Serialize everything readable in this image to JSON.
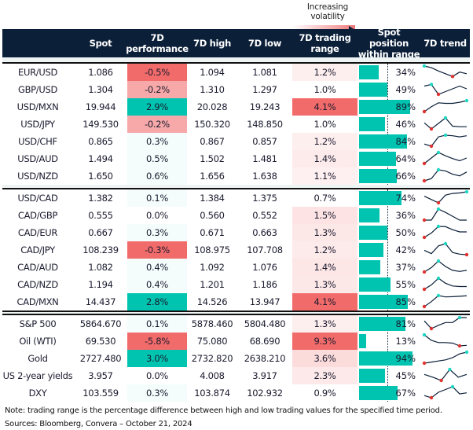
{
  "legend": {
    "label": "Increasing volatility"
  },
  "colors": {
    "header": "#0b1f38",
    "teal": "#00c4b0",
    "red": "#f26b6b",
    "trend_line": "#0b1f38",
    "max_marker": "#1fd6c2",
    "min_marker": "#e0322f"
  },
  "header": {
    "spot": "Spot",
    "perf": "7D\nperformance",
    "high": "7D high",
    "low": "7D low",
    "range": "7D trading\nrange",
    "position": "Spot position\nwithin range",
    "trend": "7D trend"
  },
  "chart_data": {
    "type": "table",
    "columns": [
      "",
      "Spot",
      "7D performance",
      "7D high",
      "7D low",
      "7D trading range",
      "Spot position within range",
      "7D trend"
    ],
    "groups": [
      {
        "rows": [
          {
            "name": "EUR/USD",
            "spot": "1.086",
            "perf": "-0.5%",
            "perf_v": -0.5,
            "high": "1.094",
            "low": "1.081",
            "range": "1.2%",
            "range_v": 1.2,
            "pos": "34%",
            "pos_v": 34,
            "trend": [
              1.0,
              0.85,
              0.55,
              0.3,
              0.05,
              0.45,
              0.3
            ]
          },
          {
            "name": "GBP/USD",
            "spot": "1.304",
            "perf": "-0.2%",
            "perf_v": -0.2,
            "high": "1.310",
            "low": "1.297",
            "range": "1.0%",
            "range_v": 1.0,
            "pos": "49%",
            "pos_v": 49,
            "trend": [
              0.75,
              0.9,
              0.0,
              0.25,
              0.5,
              0.75,
              0.5
            ]
          },
          {
            "name": "USD/MXN",
            "spot": "19.944",
            "perf": "2.9%",
            "perf_v": 2.9,
            "high": "20.028",
            "low": "19.243",
            "range": "4.1%",
            "range_v": 4.1,
            "pos": "89%",
            "pos_v": 89,
            "trend": [
              0.0,
              0.45,
              0.8,
              0.75,
              0.75,
              0.85,
              1.0
            ]
          },
          {
            "name": "USD/JPY",
            "spot": "149.530",
            "perf": "-0.2%",
            "perf_v": -0.2,
            "high": "150.320",
            "low": "148.850",
            "range": "1.0%",
            "range_v": 1.0,
            "pos": "46%",
            "pos_v": 46,
            "trend": [
              0.55,
              0.0,
              0.5,
              1.0,
              0.25,
              0.2,
              0.2
            ]
          },
          {
            "name": "USD/CHF",
            "spot": "0.865",
            "perf": "0.3%",
            "perf_v": 0.3,
            "high": "0.867",
            "low": "0.857",
            "range": "1.2%",
            "range_v": 1.2,
            "pos": "84%",
            "pos_v": 84,
            "trend": [
              0.2,
              0.0,
              0.85,
              1.0,
              0.95,
              0.85,
              0.95
            ]
          },
          {
            "name": "USD/AUD",
            "spot": "1.494",
            "perf": "0.5%",
            "perf_v": 0.5,
            "high": "1.502",
            "low": "1.481",
            "range": "1.4%",
            "range_v": 1.4,
            "pos": "64%",
            "pos_v": 64,
            "trend": [
              0.0,
              0.5,
              1.0,
              0.7,
              0.45,
              0.25,
              0.5
            ]
          },
          {
            "name": "USD/NZD",
            "spot": "1.650",
            "perf": "0.6%",
            "perf_v": 0.6,
            "high": "1.656",
            "low": "1.638",
            "range": "1.1%",
            "range_v": 1.1,
            "pos": "66%",
            "pos_v": 66,
            "trend": [
              0.0,
              0.2,
              1.0,
              0.9,
              0.6,
              0.45,
              0.8
            ]
          }
        ]
      },
      {
        "rows": [
          {
            "name": "USD/CAD",
            "spot": "1.382",
            "perf": "0.1%",
            "perf_v": 0.1,
            "high": "1.384",
            "low": "1.375",
            "range": "0.7%",
            "range_v": 0.7,
            "pos": "74%",
            "pos_v": 74,
            "trend": [
              0.6,
              0.3,
              0.0,
              0.7,
              0.85,
              0.9,
              1.0
            ]
          },
          {
            "name": "CAD/GBP",
            "spot": "0.555",
            "perf": "0.0%",
            "perf_v": 0.0,
            "high": "0.560",
            "low": "0.552",
            "range": "1.5%",
            "range_v": 1.5,
            "pos": "36%",
            "pos_v": 36,
            "trend": [
              0.0,
              0.0,
              1.0,
              0.7,
              0.35,
              0.0,
              0.0
            ]
          },
          {
            "name": "CAD/EUR",
            "spot": "0.667",
            "perf": "0.3%",
            "perf_v": 0.3,
            "high": "0.671",
            "low": "0.663",
            "range": "1.3%",
            "range_v": 1.3,
            "pos": "50%",
            "pos_v": 50,
            "trend": [
              0.0,
              0.4,
              1.0,
              0.98,
              0.7,
              0.5,
              0.5
            ]
          },
          {
            "name": "CAD/JPY",
            "spot": "108.239",
            "perf": "-0.3%",
            "perf_v": -0.3,
            "high": "108.975",
            "low": "107.708",
            "range": "1.2%",
            "range_v": 1.2,
            "pos": "42%",
            "pos_v": 42,
            "trend": [
              0.4,
              0.1,
              0.8,
              1.0,
              0.2,
              0.05,
              0.0
            ]
          },
          {
            "name": "CAD/AUD",
            "spot": "1.082",
            "perf": "0.4%",
            "perf_v": 0.4,
            "high": "1.092",
            "low": "1.076",
            "range": "1.4%",
            "range_v": 1.4,
            "pos": "37%",
            "pos_v": 37,
            "trend": [
              0.0,
              0.4,
              1.0,
              0.5,
              0.15,
              0.05,
              0.15
            ]
          },
          {
            "name": "CAD/NZD",
            "spot": "1.194",
            "perf": "0.4%",
            "perf_v": 0.4,
            "high": "1.201",
            "low": "1.186",
            "range": "1.3%",
            "range_v": 1.3,
            "pos": "55%",
            "pos_v": 55,
            "trend": [
              0.0,
              0.4,
              1.0,
              0.55,
              0.3,
              0.25,
              0.25
            ]
          },
          {
            "name": "CAD/MXN",
            "spot": "14.437",
            "perf": "2.8%",
            "perf_v": 2.8,
            "high": "14.526",
            "low": "13.947",
            "range": "4.1%",
            "range_v": 4.1,
            "pos": "85%",
            "pos_v": 85,
            "trend": [
              0.0,
              0.45,
              1.0,
              0.88,
              0.9,
              0.94,
              0.98
            ]
          }
        ]
      },
      {
        "rows": [
          {
            "name": "S&P 500",
            "spot": "5864.670",
            "perf": "0.1%",
            "perf_v": 0.1,
            "high": "5878.460",
            "low": "5804.480",
            "range": "1.3%",
            "range_v": 1.3,
            "pos": "81%",
            "pos_v": 81,
            "trend": [
              0.7,
              0.0,
              0.3,
              0.55,
              0.55,
              1.0,
              1.0
            ]
          },
          {
            "name": "Oil (WTI)",
            "spot": "69.530",
            "perf": "-5.8%",
            "perf_v": -5.8,
            "high": "75.080",
            "low": "68.690",
            "range": "9.3%",
            "range_v": 9.3,
            "pos": "13%",
            "pos_v": 13,
            "trend": [
              1.0,
              0.5,
              0.3,
              0.3,
              0.25,
              0.0,
              0.05
            ]
          },
          {
            "name": "Gold",
            "spot": "2727.480",
            "perf": "3.0%",
            "perf_v": 3.0,
            "high": "2732.820",
            "low": "2638.210",
            "range": "3.6%",
            "range_v": 3.6,
            "pos": "94%",
            "pos_v": 94,
            "trend": [
              0.0,
              0.1,
              0.2,
              0.3,
              0.5,
              0.85,
              1.0
            ]
          },
          {
            "name": "US 2-year yields",
            "spot": "3.957",
            "perf": "0.0%",
            "perf_v": 0.0,
            "high": "4.008",
            "low": "3.917",
            "range": "2.3%",
            "range_v": 2.3,
            "pos": "45%",
            "pos_v": 45,
            "trend": [
              0.55,
              0.3,
              0.0,
              1.0,
              0.3,
              0.55
            ]
          },
          {
            "name": "DXY",
            "spot": "103.559",
            "perf": "0.3%",
            "perf_v": 0.3,
            "high": "103.874",
            "low": "102.932",
            "range": "0.9%",
            "range_v": 0.9,
            "pos": "67%",
            "pos_v": 67,
            "trend": [
              0.2,
              0.0,
              0.5,
              0.75,
              1.0,
              0.35,
              0.45
            ]
          }
        ]
      }
    ]
  },
  "footer": {
    "note": "Note: trading range is the percentage difference between high and low trading values for the specified time period.",
    "sources": "Sources: Bloomberg, Convera – October 21, 2024"
  }
}
